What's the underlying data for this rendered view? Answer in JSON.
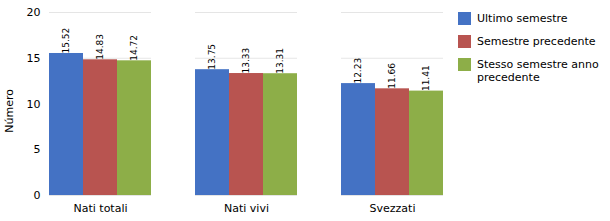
{
  "chart_data": {
    "type": "bar",
    "ylabel": "Número",
    "categories": [
      "Nati totali",
      "Nati vivi",
      "Svezzati"
    ],
    "series": [
      {
        "name": "Ultimo semestre",
        "color": "#4472C4",
        "values": [
          15.52,
          13.75,
          12.23
        ]
      },
      {
        "name": "Semestre precedente",
        "color": "#B85450",
        "values": [
          14.83,
          13.33,
          11.66
        ]
      },
      {
        "name": "Stesso semestre anno\nprecedente",
        "color": "#8DAE48",
        "values": [
          14.72,
          13.31,
          11.41
        ]
      }
    ],
    "ylim": [
      0,
      20
    ],
    "yticks": [
      0,
      5,
      10,
      15,
      20
    ],
    "grid": true,
    "legend": "right",
    "data_labels": true
  }
}
